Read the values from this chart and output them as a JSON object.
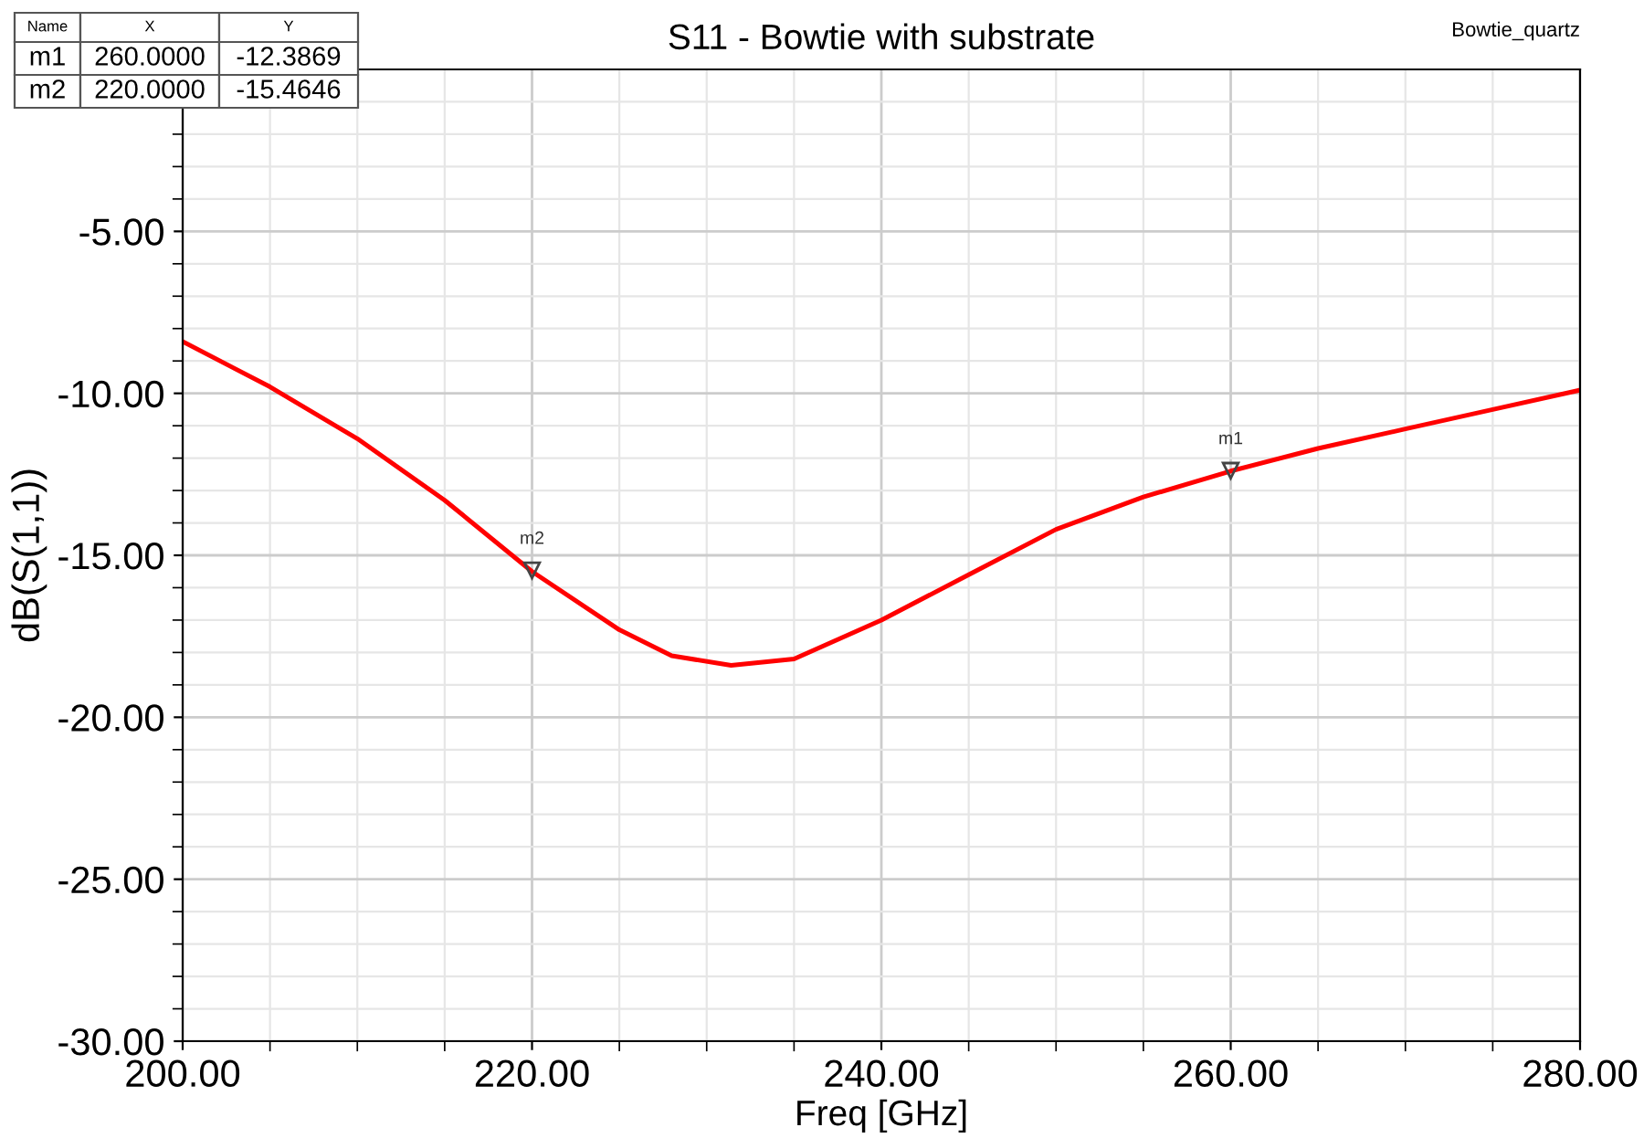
{
  "chart_data": {
    "type": "line",
    "title": "S11 - Bowtie with substrate",
    "xlabel": "Freq [GHz]",
    "ylabel": "dB(S(1,1))",
    "x": [
      200,
      205,
      210,
      215,
      220,
      225,
      228,
      231.4,
      235,
      240,
      245,
      250,
      255,
      260,
      265,
      270,
      275,
      280
    ],
    "series": [
      {
        "color": "#ff0000",
        "values": [
          -8.4,
          -9.8,
          -11.4,
          -13.3,
          -15.5,
          -17.3,
          -18.1,
          -18.4,
          -18.2,
          -17.0,
          -15.6,
          -14.2,
          -13.2,
          -12.4,
          -11.7,
          -11.1,
          -10.5,
          -9.9
        ]
      }
    ],
    "xlim": [
      200,
      280
    ],
    "ylim": [
      -30,
      0
    ],
    "xticks": [
      {
        "value": 200,
        "label": "200.00"
      },
      {
        "value": 220,
        "label": "220.00"
      },
      {
        "value": 240,
        "label": "240.00"
      },
      {
        "value": 260,
        "label": "260.00"
      },
      {
        "value": 280,
        "label": "280.00"
      }
    ],
    "yticks": [
      {
        "value": -30,
        "label": "-30.00"
      },
      {
        "value": -25,
        "label": "-25.00"
      },
      {
        "value": -20,
        "label": "-20.00"
      },
      {
        "value": -15,
        "label": "-15.00"
      },
      {
        "value": -10,
        "label": "-10.00"
      },
      {
        "value": -5,
        "label": "-5.00"
      }
    ],
    "grid": true,
    "legend": false,
    "annotations": [
      "Bowtie_quartz",
      "Name",
      "X",
      "Y",
      "m1",
      "260.0000",
      "-12.3869",
      "m2",
      "220.0000",
      "-15.4646",
      {
        "text": "m1",
        "x": 260,
        "y": -12.3869
      },
      {
        "text": "m2",
        "x": 220,
        "y": -15.4646
      }
    ]
  }
}
